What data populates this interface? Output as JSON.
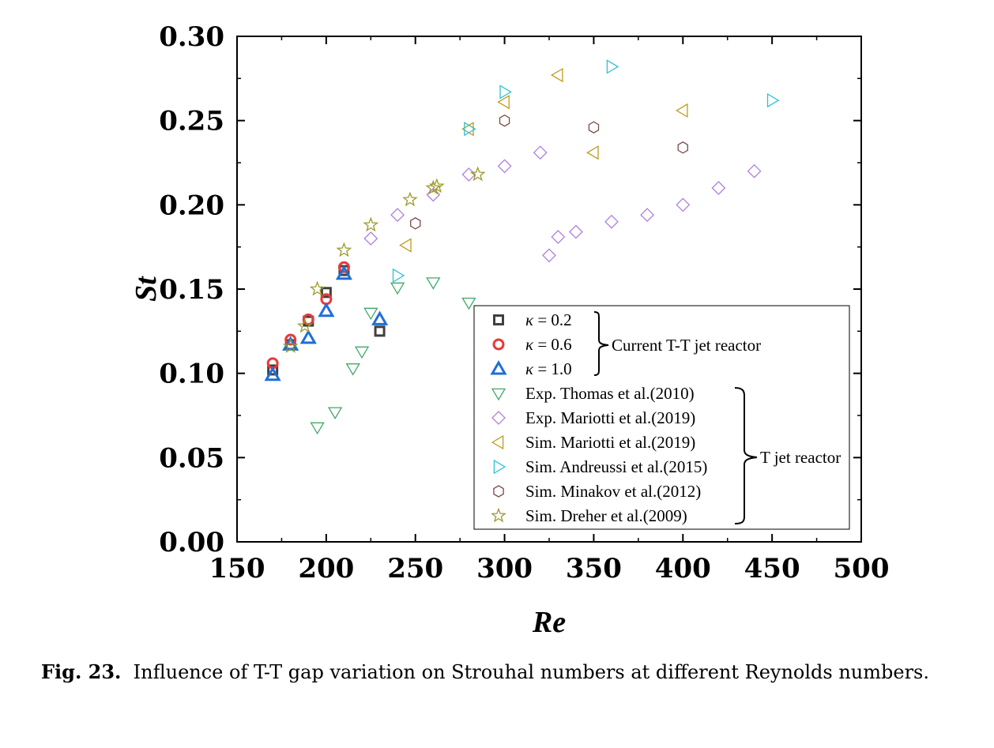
{
  "chart_data": {
    "type": "scatter",
    "xlabel": "Re",
    "ylabel": "St",
    "xlim": [
      150,
      500
    ],
    "ylim": [
      0.0,
      0.3
    ],
    "x_ticks": [
      "150",
      "200",
      "250",
      "300",
      "350",
      "400",
      "450",
      "500"
    ],
    "y_ticks": [
      "0.00",
      "0.05",
      "0.10",
      "0.15",
      "0.20",
      "0.25",
      "0.30"
    ],
    "grid": false,
    "legend_position": "bottom-right",
    "series": [
      {
        "name": "κ = 0.2",
        "marker": "square",
        "color": "#404040",
        "group": 0,
        "x": [
          170,
          180,
          190,
          200,
          210,
          230
        ],
        "y": [
          0.102,
          0.117,
          0.131,
          0.148,
          0.161,
          0.125
        ]
      },
      {
        "name": "κ = 0.6",
        "marker": "circle",
        "color": "#e8393a",
        "group": 0,
        "x": [
          170,
          180,
          190,
          200,
          210
        ],
        "y": [
          0.106,
          0.12,
          0.132,
          0.144,
          0.163
        ]
      },
      {
        "name": "κ = 1.0",
        "marker": "triangle-up",
        "color": "#1f6fd6",
        "group": 0,
        "x": [
          170,
          180,
          190,
          200,
          210,
          230
        ],
        "y": [
          0.099,
          0.117,
          0.121,
          0.137,
          0.159,
          0.132
        ]
      },
      {
        "name": "Exp. Thomas et al.(2010)",
        "marker": "triangle-down",
        "color": "#3fa86a",
        "group": 1,
        "x": [
          195,
          205,
          215,
          220,
          225,
          240,
          260,
          280
        ],
        "y": [
          0.068,
          0.077,
          0.103,
          0.113,
          0.136,
          0.151,
          0.154,
          0.142
        ]
      },
      {
        "name": "Exp. Mariotti et al.(2019)",
        "marker": "diamond",
        "color": "#b07fe0",
        "group": 1,
        "x": [
          225,
          240,
          260,
          280,
          300,
          320,
          325,
          330,
          340,
          360,
          380,
          400,
          420,
          440
        ],
        "y": [
          0.18,
          0.194,
          0.206,
          0.218,
          0.223,
          0.231,
          0.17,
          0.181,
          0.184,
          0.19,
          0.194,
          0.2,
          0.21,
          0.22
        ]
      },
      {
        "name": "Sim. Mariotti et al.(2019)",
        "marker": "triangle-left",
        "color": "#c19a1e",
        "group": 1,
        "x": [
          245,
          280,
          300,
          330,
          350,
          400
        ],
        "y": [
          0.176,
          0.245,
          0.261,
          0.277,
          0.231,
          0.256
        ]
      },
      {
        "name": "Sim. Andreussi et al.(2015)",
        "marker": "triangle-right",
        "color": "#2cc2d2",
        "group": 1,
        "x": [
          240,
          280,
          300,
          360,
          450
        ],
        "y": [
          0.158,
          0.245,
          0.267,
          0.282,
          0.262
        ]
      },
      {
        "name": "Sim. Minakov et al.(2012)",
        "marker": "hexagon",
        "color": "#7a4a46",
        "group": 1,
        "x": [
          250,
          300,
          350,
          400
        ],
        "y": [
          0.189,
          0.25,
          0.246,
          0.234
        ]
      },
      {
        "name": "Sim. Dreher et al.(2009)",
        "marker": "star",
        "color": "#9a9a2a",
        "group": 1,
        "x": [
          180,
          188,
          195,
          210,
          225,
          247,
          260,
          262,
          285
        ],
        "y": [
          0.116,
          0.128,
          0.15,
          0.173,
          0.188,
          0.203,
          0.21,
          0.211,
          0.218
        ]
      }
    ],
    "legend_groups": [
      "Current T-T jet reactor",
      "T jet reactor"
    ]
  },
  "caption": {
    "label": "Fig. 23.",
    "text": "Influence of T-T gap variation on Strouhal numbers at different Reynolds numbers."
  }
}
